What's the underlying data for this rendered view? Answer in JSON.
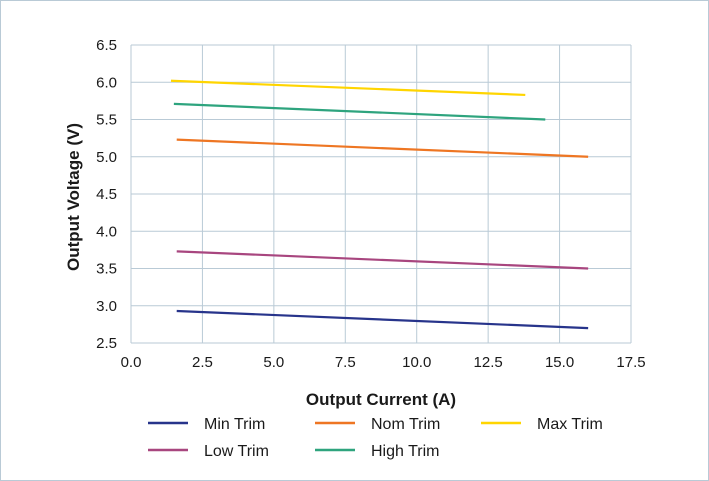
{
  "chart_data": {
    "type": "line",
    "xlabel": "Output Current (A)",
    "ylabel": "Output Voltage (V)",
    "xlim": [
      0,
      17.5
    ],
    "ylim": [
      2.5,
      6.5
    ],
    "xticks": [
      "0.0",
      "2.5",
      "5.0",
      "7.5",
      "10.0",
      "12.5",
      "15.0",
      "17.5"
    ],
    "yticks": [
      "2.5",
      "3.0",
      "3.5",
      "4.0",
      "4.5",
      "5.0",
      "5.5",
      "6.0",
      "6.5"
    ],
    "grid": true,
    "legend_position": "bottom",
    "series": [
      {
        "name": "Min Trim",
        "color": "#27348b",
        "x": [
          1.6,
          16.0
        ],
        "y": [
          2.93,
          2.7
        ]
      },
      {
        "name": "Nom Trim",
        "color": "#ee7623",
        "x": [
          1.6,
          16.0
        ],
        "y": [
          5.23,
          5.0
        ]
      },
      {
        "name": "Max Trim",
        "color": "#ffd500",
        "x": [
          1.4,
          13.8
        ],
        "y": [
          6.02,
          5.83
        ]
      },
      {
        "name": "Low Trim",
        "color": "#a8467f",
        "x": [
          1.6,
          16.0
        ],
        "y": [
          3.73,
          3.5
        ]
      },
      {
        "name": "High Trim",
        "color": "#2ea47e",
        "x": [
          1.5,
          14.5
        ],
        "y": [
          5.71,
          5.5
        ]
      }
    ]
  }
}
